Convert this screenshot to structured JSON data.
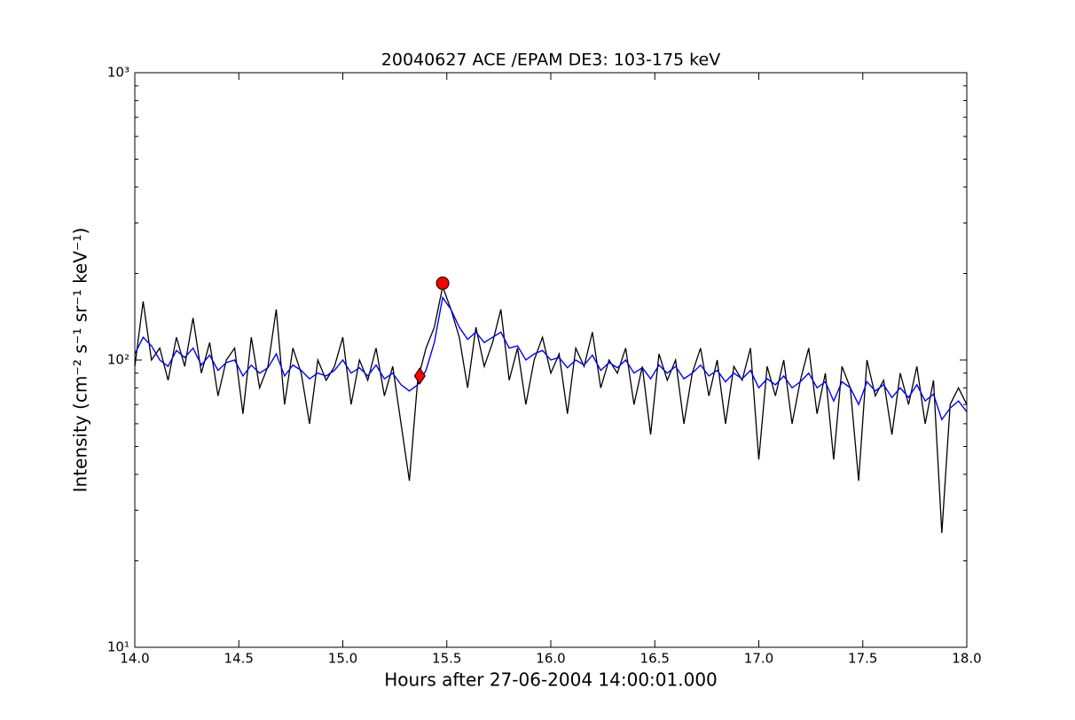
{
  "chart_data": {
    "type": "line",
    "title": "20040627 ACE /EPAM DE3: 103-175 keV",
    "xlabel": "Hours after 27-06-2004 14:00:01.000",
    "ylabel": "Intensity (cm⁻² s⁻¹ sr⁻¹ keV⁻¹)",
    "log_y": true,
    "xlim": [
      14.0,
      18.0
    ],
    "ylim": [
      10,
      1000
    ],
    "xticks": [
      {
        "value": 14.0,
        "label": "14.0"
      },
      {
        "value": 14.5,
        "label": "14.5"
      },
      {
        "value": 15.0,
        "label": "15.0"
      },
      {
        "value": 15.5,
        "label": "15.5"
      },
      {
        "value": 16.0,
        "label": "16.0"
      },
      {
        "value": 16.5,
        "label": "16.5"
      },
      {
        "value": 17.0,
        "label": "17.0"
      },
      {
        "value": 17.5,
        "label": "17.5"
      },
      {
        "value": 18.0,
        "label": "18.0"
      }
    ],
    "yticks": [
      {
        "value": 10,
        "label": "10¹"
      },
      {
        "value": 100,
        "label": "10²"
      },
      {
        "value": 1000,
        "label": "10³"
      }
    ],
    "yminorticks": [
      20,
      30,
      40,
      50,
      60,
      70,
      80,
      90,
      200,
      300,
      400,
      500,
      600,
      700,
      800,
      900
    ],
    "x": [
      14.0,
      14.04,
      14.08,
      14.12,
      14.16,
      14.2,
      14.24,
      14.28,
      14.32,
      14.36,
      14.4,
      14.44,
      14.48,
      14.52,
      14.56,
      14.6,
      14.64,
      14.68,
      14.72,
      14.76,
      14.8,
      14.84,
      14.88,
      14.92,
      14.96,
      15.0,
      15.04,
      15.08,
      15.12,
      15.16,
      15.2,
      15.24,
      15.28,
      15.32,
      15.36,
      15.4,
      15.44,
      15.48,
      15.52,
      15.56,
      15.6,
      15.64,
      15.68,
      15.72,
      15.76,
      15.8,
      15.84,
      15.88,
      15.92,
      15.96,
      16.0,
      16.04,
      16.08,
      16.12,
      16.16,
      16.2,
      16.24,
      16.28,
      16.32,
      16.36,
      16.4,
      16.44,
      16.48,
      16.52,
      16.56,
      16.6,
      16.64,
      16.68,
      16.72,
      16.76,
      16.8,
      16.84,
      16.88,
      16.92,
      16.96,
      17.0,
      17.04,
      17.08,
      17.12,
      17.16,
      17.2,
      17.24,
      17.28,
      17.32,
      17.36,
      17.4,
      17.44,
      17.48,
      17.52,
      17.56,
      17.6,
      17.64,
      17.68,
      17.72,
      17.76,
      17.8,
      17.84,
      17.88,
      17.92,
      17.96,
      18.0
    ],
    "series": [
      {
        "name": "intensity",
        "color": "#000000",
        "values": [
          95,
          160,
          100,
          110,
          85,
          120,
          95,
          140,
          90,
          115,
          75,
          100,
          110,
          65,
          120,
          80,
          95,
          150,
          70,
          110,
          90,
          60,
          100,
          85,
          95,
          120,
          70,
          100,
          85,
          110,
          75,
          95,
          60,
          38,
          85,
          110,
          130,
          180,
          150,
          120,
          80,
          130,
          95,
          115,
          150,
          85,
          110,
          70,
          100,
          120,
          90,
          105,
          65,
          110,
          95,
          125,
          80,
          100,
          90,
          110,
          70,
          95,
          55,
          105,
          85,
          100,
          60,
          90,
          110,
          75,
          100,
          60,
          95,
          85,
          110,
          45,
          95,
          75,
          100,
          60,
          85,
          110,
          65,
          90,
          45,
          95,
          80,
          38,
          100,
          75,
          85,
          55,
          90,
          70,
          95,
          60,
          85,
          25,
          70,
          80,
          70
        ]
      },
      {
        "name": "smoothed",
        "color": "#0000ff",
        "values": [
          105,
          120,
          112,
          100,
          95,
          108,
          102,
          110,
          96,
          104,
          92,
          98,
          100,
          88,
          96,
          90,
          94,
          105,
          88,
          96,
          92,
          86,
          90,
          88,
          92,
          100,
          90,
          94,
          88,
          96,
          86,
          90,
          82,
          78,
          82,
          92,
          115,
          165,
          150,
          130,
          118,
          125,
          115,
          120,
          125,
          110,
          112,
          100,
          105,
          108,
          100,
          102,
          94,
          100,
          96,
          104,
          92,
          98,
          94,
          100,
          90,
          94,
          86,
          96,
          90,
          95,
          86,
          90,
          96,
          88,
          92,
          84,
          90,
          86,
          92,
          80,
          86,
          82,
          88,
          80,
          84,
          90,
          80,
          84,
          72,
          84,
          80,
          70,
          84,
          78,
          82,
          74,
          80,
          74,
          82,
          72,
          76,
          62,
          68,
          72,
          66
        ]
      }
    ],
    "markers": [
      {
        "shape": "circle",
        "color": "#ff0000",
        "x": 15.48,
        "y": 185
      },
      {
        "shape": "diamond",
        "color": "#ff0000",
        "x": 15.37,
        "y": 88
      }
    ]
  }
}
